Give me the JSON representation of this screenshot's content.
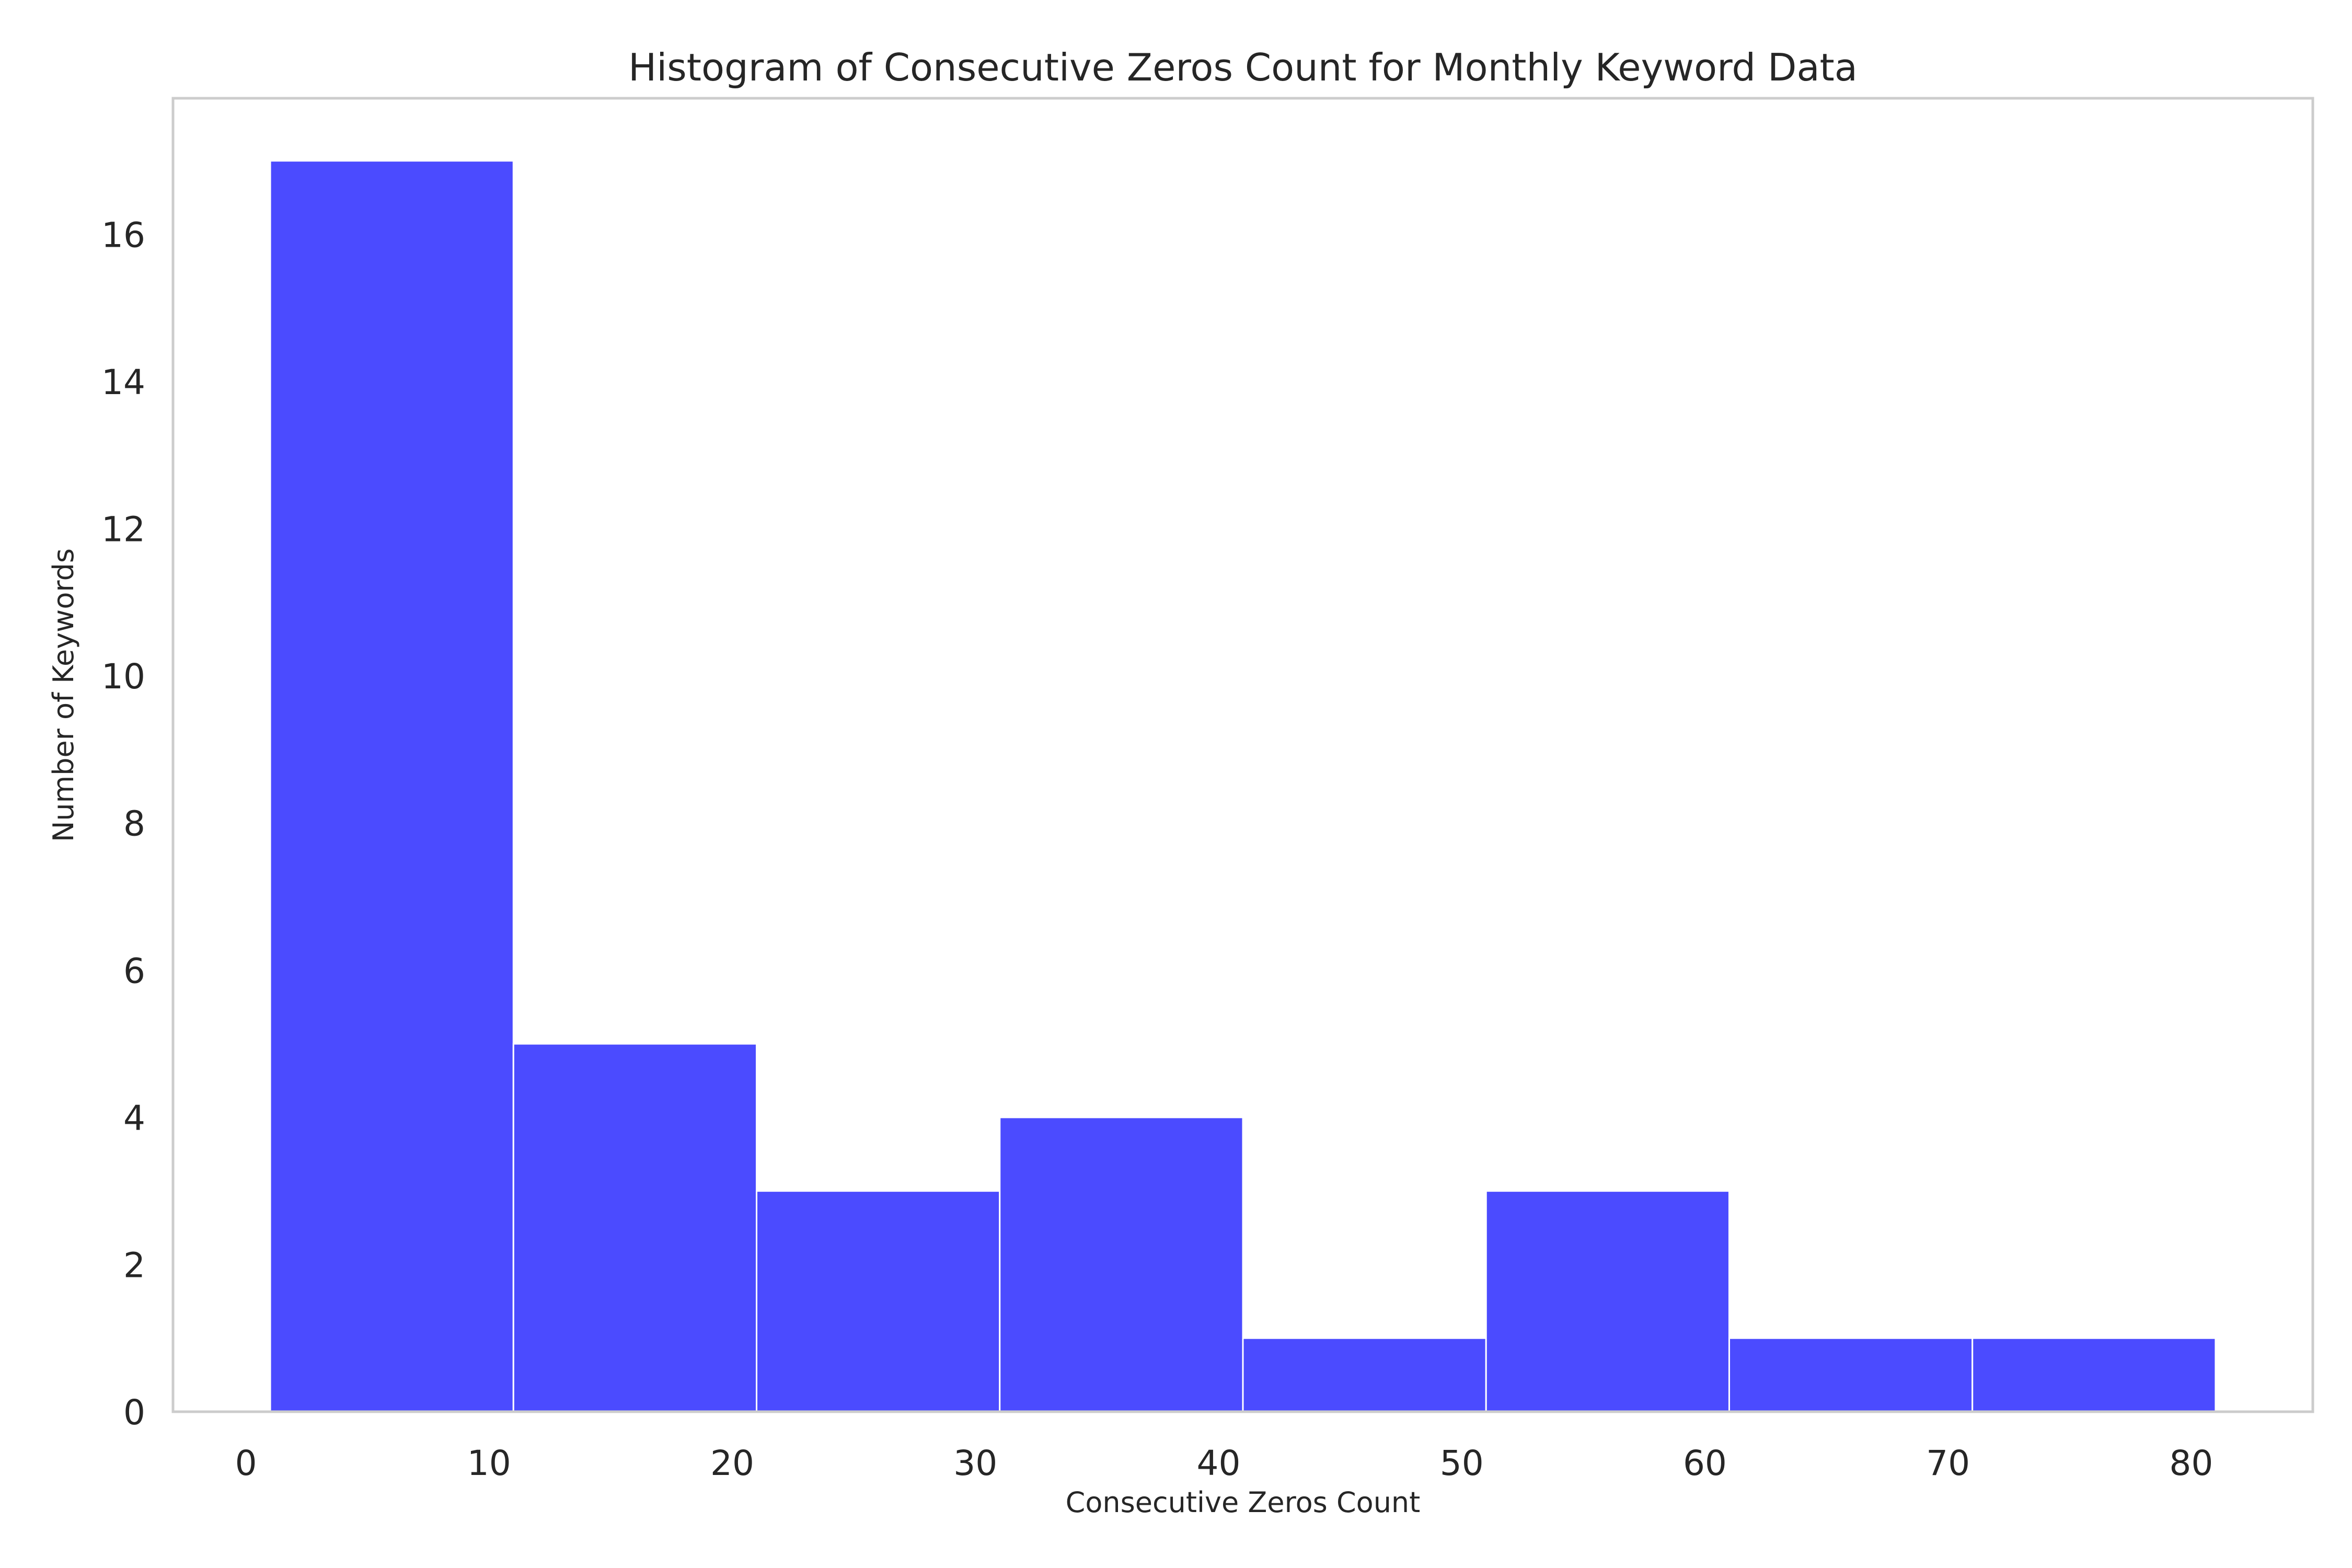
{
  "chart_data": {
    "type": "bar",
    "title": "Histogram of Consecutive Zeros Count for Monthly Keyword Data",
    "xlabel": "Consecutive Zeros Count",
    "ylabel": "Number of Keywords",
    "bins": [
      {
        "start": 1,
        "end": 11,
        "count": 17
      },
      {
        "start": 11,
        "end": 21,
        "count": 5
      },
      {
        "start": 21,
        "end": 31,
        "count": 3
      },
      {
        "start": 31,
        "end": 41,
        "count": 4
      },
      {
        "start": 41,
        "end": 51,
        "count": 1
      },
      {
        "start": 51,
        "end": 61,
        "count": 3
      },
      {
        "start": 61,
        "end": 71,
        "count": 1
      },
      {
        "start": 71,
        "end": 81,
        "count": 1
      }
    ],
    "xlim": [
      -3,
      85
    ],
    "ylim": [
      0,
      17.85
    ],
    "x_ticks": [
      0,
      10,
      20,
      30,
      40,
      50,
      60,
      70,
      80
    ],
    "y_ticks": [
      0,
      2,
      4,
      6,
      8,
      10,
      12,
      14,
      16
    ],
    "bar_color": "#4b4bff",
    "frame_color": "#cccccc",
    "grid": false,
    "legend": "none"
  }
}
